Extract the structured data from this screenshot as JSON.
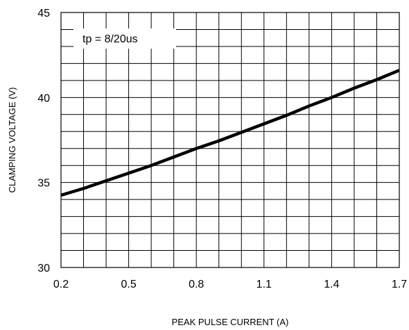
{
  "chart_data": {
    "type": "line",
    "title": "",
    "xlabel": "PEAK PULSE CURRENT (A)",
    "ylabel": "CLAMPING VOLTAGE (V)",
    "xlim": [
      0.2,
      1.7
    ],
    "ylim": [
      30,
      45
    ],
    "x_ticks": [
      "0.2",
      "0.5",
      "0.8",
      "1.1",
      "1.4",
      "1.7"
    ],
    "y_ticks": [
      "30",
      "35",
      "40",
      "45"
    ],
    "x_minor_step": 0.1,
    "y_minor_step": 1,
    "grid": true,
    "annotation": "tp = 8/20us",
    "series": [
      {
        "x": [
          0.2,
          0.3,
          0.4,
          0.5,
          0.6,
          0.7,
          0.8,
          0.9,
          1.0,
          1.1,
          1.2,
          1.3,
          1.4,
          1.5,
          1.6,
          1.7
        ],
        "y": [
          34.25,
          34.65,
          35.1,
          35.55,
          36.0,
          36.5,
          37.0,
          37.45,
          37.95,
          38.45,
          38.95,
          39.5,
          40.0,
          40.55,
          41.05,
          41.6
        ]
      }
    ],
    "colors": {
      "line": "#000000",
      "grid": "#000000",
      "background": "#ffffff"
    }
  }
}
